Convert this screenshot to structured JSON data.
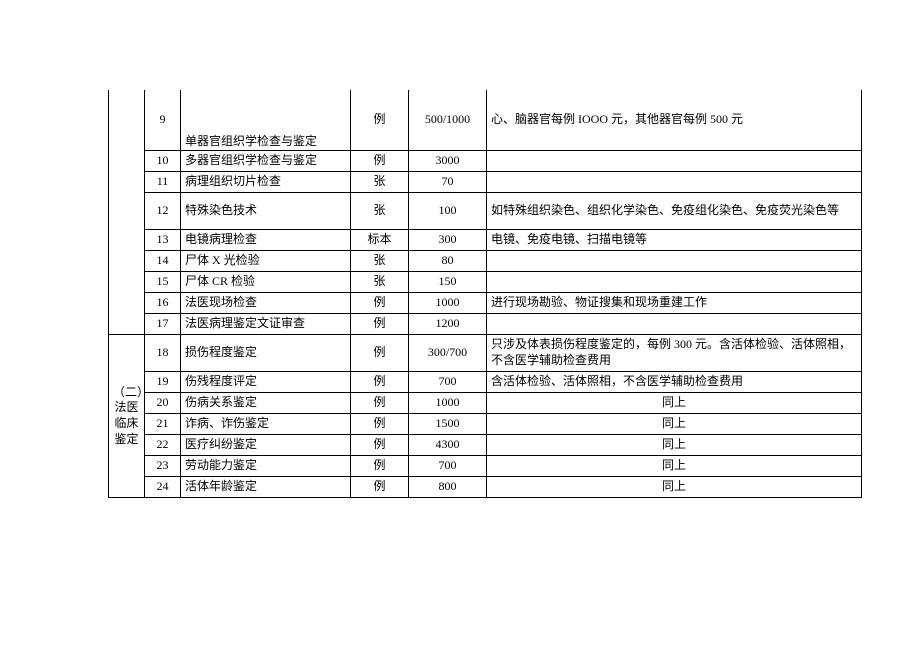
{
  "table": {
    "category_label": "（二）法医临床鉴定",
    "rows": [
      {
        "num": "9",
        "name": "单器官组织学检查与鉴定",
        "unit": "例",
        "price": "500/1000",
        "note": "心、脑器官每例 IOOO 元，其他器官每例 500 元",
        "row_class": "tall"
      },
      {
        "num": "10",
        "name": "多器官组织学检查与鉴定",
        "unit": "例",
        "price": "3000",
        "note": ""
      },
      {
        "num": "11",
        "name": "病理组织切片检查",
        "unit": "张",
        "price": "70",
        "note": ""
      },
      {
        "num": "12",
        "name": "特殊染色技术",
        "unit": "张",
        "price": "100",
        "note": "如特殊组织染色、组织化学染色、免疫组化染色、免疫荧光染色等",
        "row_class": "mid"
      },
      {
        "num": "13",
        "name": "电镜病理检查",
        "unit": "标本",
        "price": "300",
        "note": "电镜、免疫电镜、扫描电镜等"
      },
      {
        "num": "14",
        "name": "尸体 X 光检验",
        "unit": "张",
        "price": "80",
        "note": ""
      },
      {
        "num": "15",
        "name": "尸体 CR 检验",
        "unit": "张",
        "price": "150",
        "note": ""
      },
      {
        "num": "16",
        "name": "法医现场检查",
        "unit": "例",
        "price": "1000",
        "note": "进行现场勘验、物证搜集和现场重建工作"
      },
      {
        "num": "17",
        "name": "法医病理鉴定文证审查",
        "unit": "例",
        "price": "1200",
        "note": ""
      },
      {
        "num": "18",
        "name": "损伤程度鉴定",
        "unit": "例",
        "price": "300/700",
        "note": "只涉及体表损伤程度鉴定的，每例 300 元。含活体检验、活体照相，不含医学辅助检查费用",
        "row_class": "mid"
      },
      {
        "num": "19",
        "name": "伤残程度评定",
        "unit": "例",
        "price": "700",
        "note": "含活体检验、活体照相，不含医学辅助检查费用"
      },
      {
        "num": "20",
        "name": "伤病关系鉴定",
        "unit": "例",
        "price": "1000",
        "note": "同上",
        "note_center": true
      },
      {
        "num": "21",
        "name": "诈病、诈伤鉴定",
        "unit": "例",
        "price": "1500",
        "note": "同上",
        "note_center": true
      },
      {
        "num": "22",
        "name": "医疗纠纷鉴定",
        "unit": "例",
        "price": "4300",
        "note": "同上",
        "note_center": true
      },
      {
        "num": "23",
        "name": "劳动能力鉴定",
        "unit": "例",
        "price": "700",
        "note": "同上",
        "note_center": true
      },
      {
        "num": "24",
        "name": "活体年龄鉴定",
        "unit": "例",
        "price": "800",
        "note": "同上",
        "note_center": true
      }
    ],
    "second_group_start_index": 9,
    "first_group_rowspan": 9,
    "second_group_rowspan": 7
  }
}
